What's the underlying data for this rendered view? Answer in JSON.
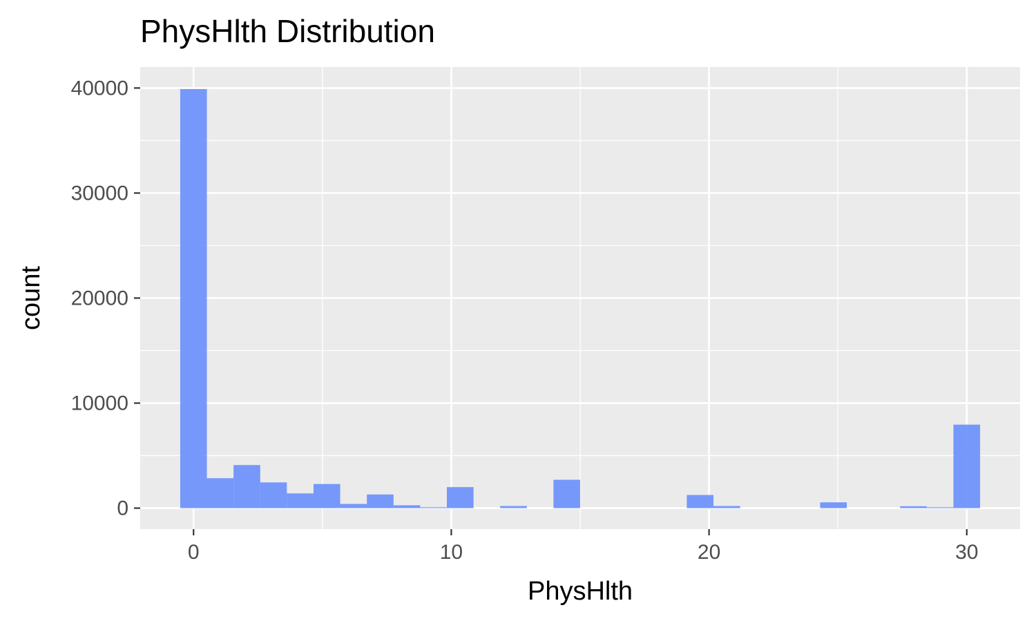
{
  "chart_data": {
    "type": "bar",
    "title": "PhysHlth Distribution",
    "xlabel": "PhysHlth",
    "ylabel": "count",
    "xlim": [
      -2.07,
      32.07
    ],
    "ylim": [
      -2000,
      42000
    ],
    "x_ticks": [
      0,
      10,
      20,
      30
    ],
    "x_tick_labels": [
      "0",
      "10",
      "20",
      "30"
    ],
    "y_ticks": [
      0,
      10000,
      20000,
      30000,
      40000
    ],
    "y_tick_labels": [
      "0",
      "10000",
      "20000",
      "30000",
      "40000"
    ],
    "bin_width": 1.0345,
    "x": [
      0,
      1.034,
      2.069,
      3.103,
      4.138,
      5.172,
      6.207,
      7.241,
      8.276,
      9.31,
      10.345,
      11.379,
      12.414,
      13.448,
      14.483,
      15.517,
      16.552,
      17.586,
      18.621,
      19.655,
      20.69,
      21.724,
      22.759,
      23.793,
      24.828,
      25.862,
      26.897,
      27.931,
      28.966,
      30
    ],
    "values": [
      39900,
      2850,
      4100,
      2450,
      1400,
      2300,
      400,
      1300,
      270,
      80,
      2000,
      0,
      200,
      0,
      2700,
      0,
      0,
      0,
      0,
      1250,
      200,
      0,
      0,
      0,
      550,
      0,
      0,
      180,
      80,
      7950
    ],
    "bar_color": "#6f94fb",
    "panel_background": "#ebebeb",
    "grid": true
  }
}
